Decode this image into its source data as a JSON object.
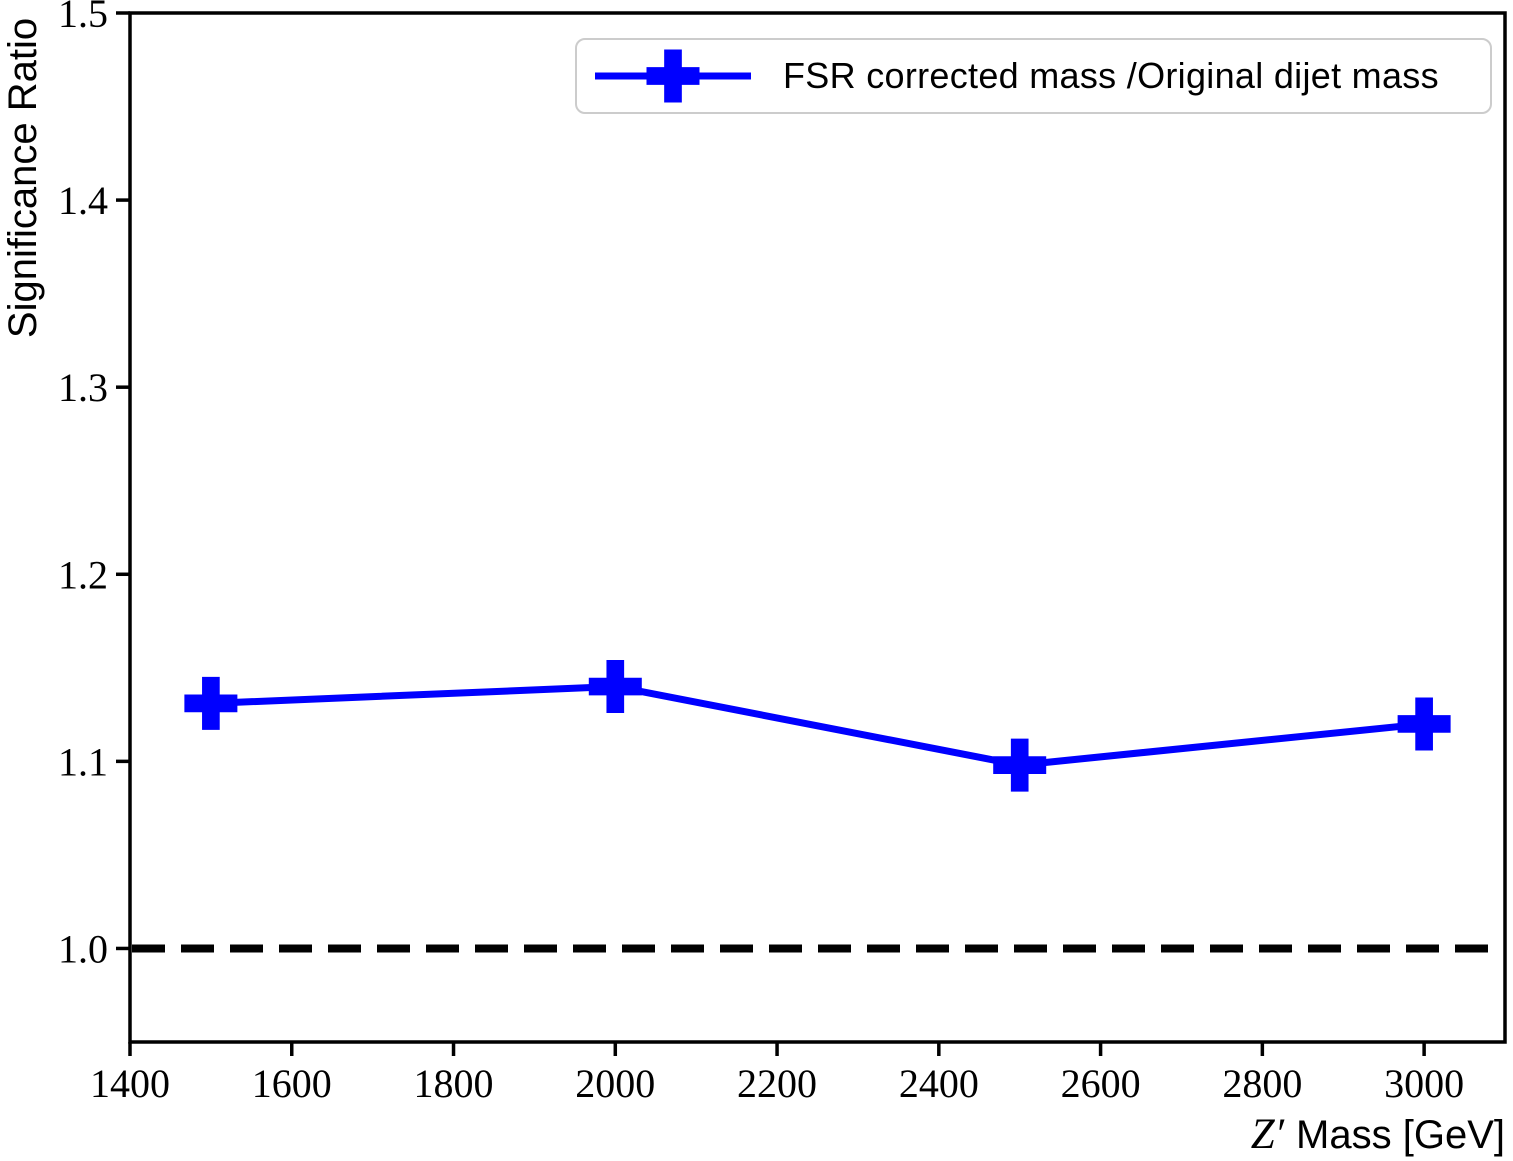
{
  "chart_data": {
    "type": "line",
    "title": "",
    "xlabel": "Z′ Mass [GeV]",
    "xlabel_symbol": "Z′",
    "xlabel_unit_text": "Mass [GeV]",
    "ylabel": "Significance Ratio",
    "xlim": [
      1400,
      3100
    ],
    "ylim": [
      0.95,
      1.5
    ],
    "xticks": [
      1400,
      1600,
      1800,
      2000,
      2200,
      2400,
      2600,
      2800,
      3000
    ],
    "xtick_labels": [
      "1400",
      "1600",
      "1800",
      "2000",
      "2200",
      "2400",
      "2600",
      "2800",
      "3000"
    ],
    "yticks": [
      1.0,
      1.1,
      1.2,
      1.3,
      1.4,
      1.5
    ],
    "ytick_labels": [
      "1.0",
      "1.1",
      "1.2",
      "1.3",
      "1.4",
      "1.5"
    ],
    "grid": false,
    "legend_position": "upper right",
    "series": [
      {
        "name": "FSR corrected mass /Original dijet mass",
        "x": [
          1500,
          2000,
          2500,
          3000
        ],
        "values": [
          1.131,
          1.14,
          1.098,
          1.12
        ],
        "color": "#0000ff",
        "marker": "plus-filled",
        "line_width": 7
      }
    ],
    "reference_line": {
      "y": 1.0,
      "style": "dashed",
      "color": "#000000"
    }
  },
  "colors": {
    "accent": "#0000ff",
    "axis": "#000000",
    "legend_border": "#cccccc",
    "background": "#ffffff"
  }
}
